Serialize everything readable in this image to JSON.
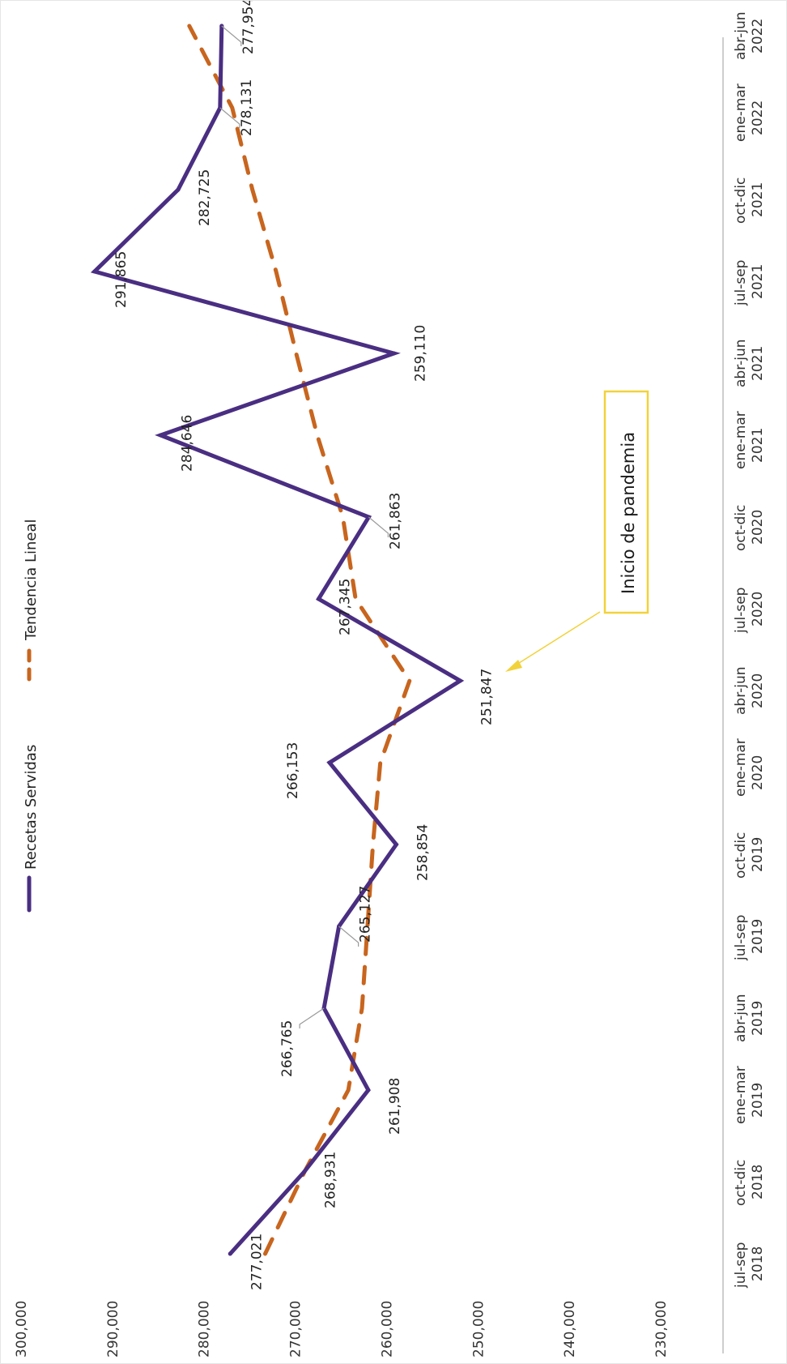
{
  "chart_data": {
    "type": "line",
    "categories": [
      [
        "jul-sep",
        "2018"
      ],
      [
        "oct-dic",
        "2018"
      ],
      [
        "ene-mar",
        "2019"
      ],
      [
        "abr-jun",
        "2019"
      ],
      [
        "jul-sep",
        "2019"
      ],
      [
        "oct-dic",
        "2019"
      ],
      [
        "ene-mar",
        "2020"
      ],
      [
        "abr-jun",
        "2020"
      ],
      [
        "jul-sep",
        "2020"
      ],
      [
        "oct-dic",
        "2020"
      ],
      [
        "ene-mar",
        "2021"
      ],
      [
        "abr-jun",
        "2021"
      ],
      [
        "jul-sep",
        "2021"
      ],
      [
        "oct-dic",
        "2021"
      ],
      [
        "ene-mar",
        "2022"
      ],
      [
        "abr-jun",
        "2022"
      ]
    ],
    "series": [
      {
        "name": "Recetas Servidas",
        "color": "#4a2e82",
        "values": [
          277021,
          268931,
          261908,
          266765,
          265127,
          258854,
          266153,
          251847,
          267345,
          261863,
          284646,
          259110,
          291865,
          282725,
          278131,
          277954
        ],
        "labels": [
          "277,021",
          "268,931",
          "261,908",
          "266,765",
          "265,127",
          "258,854",
          "266,153",
          "251,847",
          "267,345",
          "261,863",
          "284,646",
          "259,110",
          "291,865",
          "282,725",
          "278,131",
          "277,954"
        ]
      },
      {
        "name": "Tendencia Lineal",
        "color": "#c8651e",
        "style": "dashed",
        "values": [
          273200,
          268900,
          264100,
          262600,
          262000,
          261400,
          260600,
          257400,
          263300,
          264700,
          267500,
          269800,
          272000,
          274600,
          276800,
          281500
        ]
      }
    ],
    "value_axis": {
      "ticks": [
        "300,000",
        "290,000",
        "280,000",
        "270,000",
        "260,000",
        "250,000",
        "240,000",
        "230,000"
      ],
      "range": [
        230000,
        300000
      ]
    },
    "annotation": {
      "text": "Inicio de pandemia",
      "points_to": "abr-jun 2020",
      "color": "#f2d23a"
    },
    "legend_position": "top",
    "orientation": "rotated 90 degrees clockwise",
    "grid": false
  }
}
